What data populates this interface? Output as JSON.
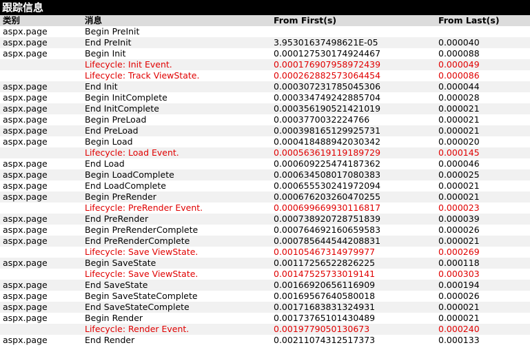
{
  "title": "跟踪信息",
  "headers": [
    "类别",
    "消息",
    "From First(s)",
    "From Last(s)"
  ],
  "rows": [
    {
      "category": "aspx.page",
      "message": "Begin PreInit",
      "first": "",
      "last": "",
      "warn": false
    },
    {
      "category": "aspx.page",
      "message": "End PreInit",
      "first": "3.95301637498621E-05",
      "last": "0.000040",
      "warn": false
    },
    {
      "category": "aspx.page",
      "message": "Begin Init",
      "first": "0.000127530174924467",
      "last": "0.000088",
      "warn": false
    },
    {
      "category": "",
      "message": "Lifecycle: Init Event.",
      "first": "0.000176907958972439",
      "last": "0.000049",
      "warn": true
    },
    {
      "category": "",
      "message": "Lifecycle: Track ViewState.",
      "first": "0.000262882573064454",
      "last": "0.000086",
      "warn": true
    },
    {
      "category": "aspx.page",
      "message": "End Init",
      "first": "0.000307231785045306",
      "last": "0.000044",
      "warn": false
    },
    {
      "category": "aspx.page",
      "message": "Begin InitComplete",
      "first": "0.000334749242885704",
      "last": "0.000028",
      "warn": false
    },
    {
      "category": "aspx.page",
      "message": "End InitComplete",
      "first": "0.000356190521421019",
      "last": "0.000021",
      "warn": false
    },
    {
      "category": "aspx.page",
      "message": "Begin PreLoad",
      "first": "0.0003770032224766",
      "last": "0.000021",
      "warn": false
    },
    {
      "category": "aspx.page",
      "message": "End PreLoad",
      "first": "0.000398165129925731",
      "last": "0.000021",
      "warn": false
    },
    {
      "category": "aspx.page",
      "message": "Begin Load",
      "first": "0.000418488942030342",
      "last": "0.000020",
      "warn": false
    },
    {
      "category": "",
      "message": "Lifecycle: Load Event.",
      "first": "0.000563619119189729",
      "last": "0.000145",
      "warn": true
    },
    {
      "category": "aspx.page",
      "message": "End Load",
      "first": "0.000609225474187362",
      "last": "0.000046",
      "warn": false
    },
    {
      "category": "aspx.page",
      "message": "Begin LoadComplete",
      "first": "0.000634508017080383",
      "last": "0.000025",
      "warn": false
    },
    {
      "category": "aspx.page",
      "message": "End LoadComplete",
      "first": "0.000655530241972094",
      "last": "0.000021",
      "warn": false
    },
    {
      "category": "aspx.page",
      "message": "Begin PreRender",
      "first": "0.000676203260470255",
      "last": "0.000021",
      "warn": false
    },
    {
      "category": "",
      "message": "Lifecycle: PreRender Event.",
      "first": "0.000699669930116817",
      "last": "0.000023",
      "warn": true
    },
    {
      "category": "aspx.page",
      "message": "End PreRender",
      "first": "0.000738920728751839",
      "last": "0.000039",
      "warn": false
    },
    {
      "category": "aspx.page",
      "message": "Begin PreRenderComplete",
      "first": "0.000764692160659583",
      "last": "0.000026",
      "warn": false
    },
    {
      "category": "aspx.page",
      "message": "End PreRenderComplete",
      "first": "0.000785644544208831",
      "last": "0.000021",
      "warn": false
    },
    {
      "category": "",
      "message": "Lifecycle: Save ViewState.",
      "first": "0.00105467314979977",
      "last": "0.000269",
      "warn": true
    },
    {
      "category": "aspx.page",
      "message": "Begin SaveState",
      "first": "0.00117256522826225",
      "last": "0.000118",
      "warn": false
    },
    {
      "category": "",
      "message": "Lifecycle: Save ViewState.",
      "first": "0.00147525733019141",
      "last": "0.000303",
      "warn": true
    },
    {
      "category": "aspx.page",
      "message": "End SaveState",
      "first": "0.00166920656116909",
      "last": "0.000194",
      "warn": false
    },
    {
      "category": "aspx.page",
      "message": "Begin SaveStateComplete",
      "first": "0.00169567640580018",
      "last": "0.000026",
      "warn": false
    },
    {
      "category": "aspx.page",
      "message": "End SaveStateComplete",
      "first": "0.00171683831324931",
      "last": "0.000021",
      "warn": false
    },
    {
      "category": "aspx.page",
      "message": "Begin Render",
      "first": "0.00173765101430489",
      "last": "0.000021",
      "warn": false
    },
    {
      "category": "",
      "message": "Lifecycle: Render Event.",
      "first": "0.0019779050130673",
      "last": "0.000240",
      "warn": true
    },
    {
      "category": "aspx.page",
      "message": "End Render",
      "first": "0.00211074312517373",
      "last": "0.000133",
      "warn": false
    }
  ]
}
